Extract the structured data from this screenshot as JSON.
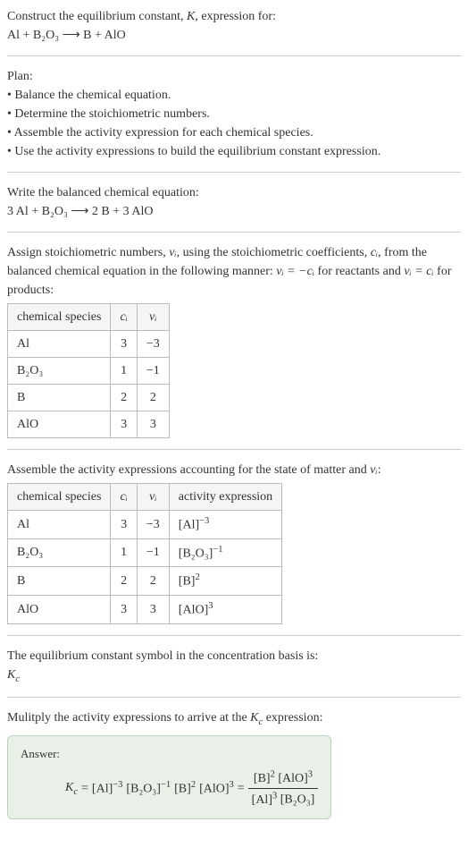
{
  "intro": {
    "line1": "Construct the equilibrium constant, ",
    "K": "K",
    "line1b": ", expression for:",
    "equation": "Al + B₂O₃  ⟶  B + AlO"
  },
  "plan": {
    "heading": "Plan:",
    "bullets": [
      "• Balance the chemical equation.",
      "• Determine the stoichiometric numbers.",
      "• Assemble the activity expression for each chemical species.",
      "• Use the activity expressions to build the equilibrium constant expression."
    ]
  },
  "balanced": {
    "text": "Write the balanced chemical equation:",
    "equation": "3 Al + B₂O₃  ⟶  2 B + 3 AlO"
  },
  "assign": {
    "text1": "Assign stoichiometric numbers, ",
    "nu": "νᵢ",
    "text2": ", using the stoichiometric coefficients, ",
    "ci": "cᵢ",
    "text3": ", from the balanced chemical equation in the following manner: ",
    "eq1": "νᵢ = −cᵢ",
    "text4": " for reactants and ",
    "eq2": "νᵢ = cᵢ",
    "text5": " for products:"
  },
  "table1": {
    "headers": [
      "chemical species",
      "cᵢ",
      "νᵢ"
    ],
    "rows": [
      [
        "Al",
        "3",
        "−3"
      ],
      [
        "B₂O₃",
        "1",
        "−1"
      ],
      [
        "B",
        "2",
        "2"
      ],
      [
        "AlO",
        "3",
        "3"
      ]
    ]
  },
  "assemble": {
    "text": "Assemble the activity expressions accounting for the state of matter and ",
    "nu": "νᵢ",
    "colon": ":"
  },
  "table2": {
    "headers": [
      "chemical species",
      "cᵢ",
      "νᵢ",
      "activity expression"
    ],
    "rows": [
      {
        "species": "Al",
        "c": "3",
        "nu": "−3",
        "base": "[Al]",
        "exp": "−3"
      },
      {
        "species": "B₂O₃",
        "c": "1",
        "nu": "−1",
        "base": "[B₂O₃]",
        "exp": "−1"
      },
      {
        "species": "B",
        "c": "2",
        "nu": "2",
        "base": "[B]",
        "exp": "2"
      },
      {
        "species": "AlO",
        "c": "3",
        "nu": "3",
        "base": "[AlO]",
        "exp": "3"
      }
    ]
  },
  "symbol": {
    "text": "The equilibrium constant symbol in the concentration basis is:",
    "kc_base": "K",
    "kc_sub": "c"
  },
  "multiply": {
    "text1": "Mulitply the activity expressions to arrive at the ",
    "kc_base": "K",
    "kc_sub": "c",
    "text2": " expression:"
  },
  "answer": {
    "label": "Answer:",
    "kc_base": "K",
    "kc_sub": "c",
    "eq": " = ",
    "terms": [
      {
        "base": "[Al]",
        "exp": "−3"
      },
      {
        "base": "[B₂O₃]",
        "exp": "−1"
      },
      {
        "base": "[B]",
        "exp": "2"
      },
      {
        "base": "[AlO]",
        "exp": "3"
      }
    ],
    "eq2": " = ",
    "num": [
      {
        "base": "[B]",
        "exp": "2"
      },
      {
        "base": "[AlO]",
        "exp": "3"
      }
    ],
    "den": [
      {
        "base": "[Al]",
        "exp": "3"
      },
      {
        "base": "[B₂O₃]",
        "exp": ""
      }
    ]
  },
  "colors": {
    "text": "#333333",
    "border": "#bbbbbb",
    "hr": "#cccccc",
    "answer_bg": "#e8f0e8",
    "answer_border": "#c0d0c0"
  }
}
